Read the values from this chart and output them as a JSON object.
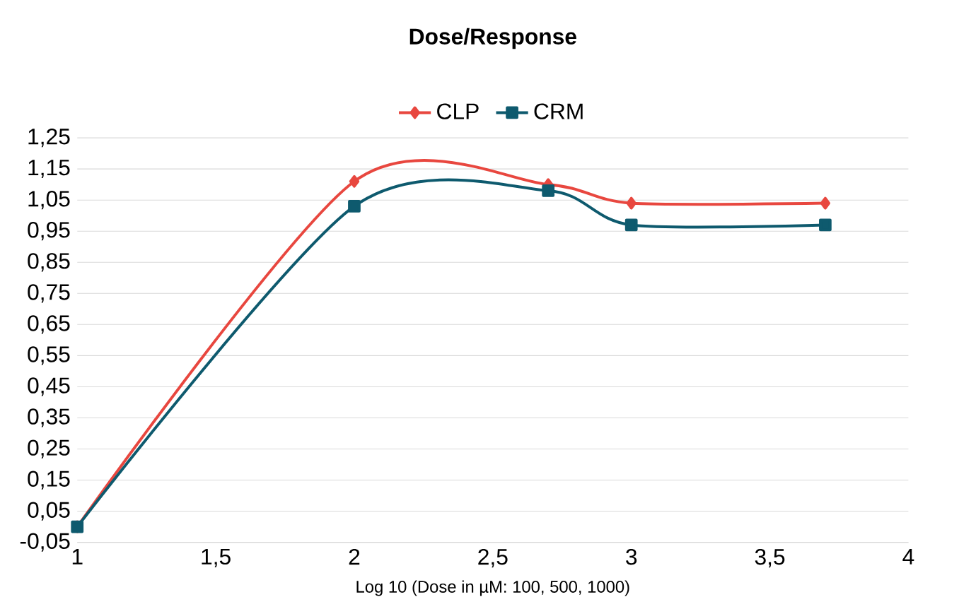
{
  "chart_data": {
    "type": "line",
    "title": "Dose/Response",
    "xlabel": "Log 10 (Dose in µM: 100, 500, 1000)",
    "x": [
      1,
      2,
      2.7,
      3,
      3.7
    ],
    "series": [
      {
        "name": "CLP",
        "color": "#e8473f",
        "marker": "diamond",
        "values": [
          0,
          1.11,
          1.1,
          1.04,
          1.04
        ]
      },
      {
        "name": "CRM",
        "color": "#0e5a6e",
        "marker": "square",
        "values": [
          0,
          1.03,
          1.08,
          0.97,
          0.97
        ]
      }
    ],
    "xlim": [
      1,
      4
    ],
    "xticks": [
      1,
      {
        "value": 1.5,
        "label": "1,5"
      },
      2,
      {
        "value": 2.5,
        "label": "2,5"
      },
      3,
      {
        "value": 3.5,
        "label": "3,5"
      },
      4
    ],
    "ylim": [
      -0.05,
      1.25
    ],
    "yticks": [
      {
        "value": -0.05,
        "label": "-0,05"
      },
      {
        "value": 0.05,
        "label": "0,05"
      },
      {
        "value": 0.15,
        "label": "0,15"
      },
      {
        "value": 0.25,
        "label": "0,25"
      },
      {
        "value": 0.35,
        "label": "0,35"
      },
      {
        "value": 0.45,
        "label": "0,45"
      },
      {
        "value": 0.55,
        "label": "0,55"
      },
      {
        "value": 0.65,
        "label": "0,65"
      },
      {
        "value": 0.75,
        "label": "0,75"
      },
      {
        "value": 0.85,
        "label": "0,85"
      },
      {
        "value": 0.95,
        "label": "0,95"
      },
      {
        "value": 1.05,
        "label": "1,05"
      },
      {
        "value": 1.15,
        "label": "1,15"
      },
      {
        "value": 1.25,
        "label": "1,25"
      }
    ],
    "grid": "y",
    "legend": "top",
    "line_style": "solid"
  }
}
